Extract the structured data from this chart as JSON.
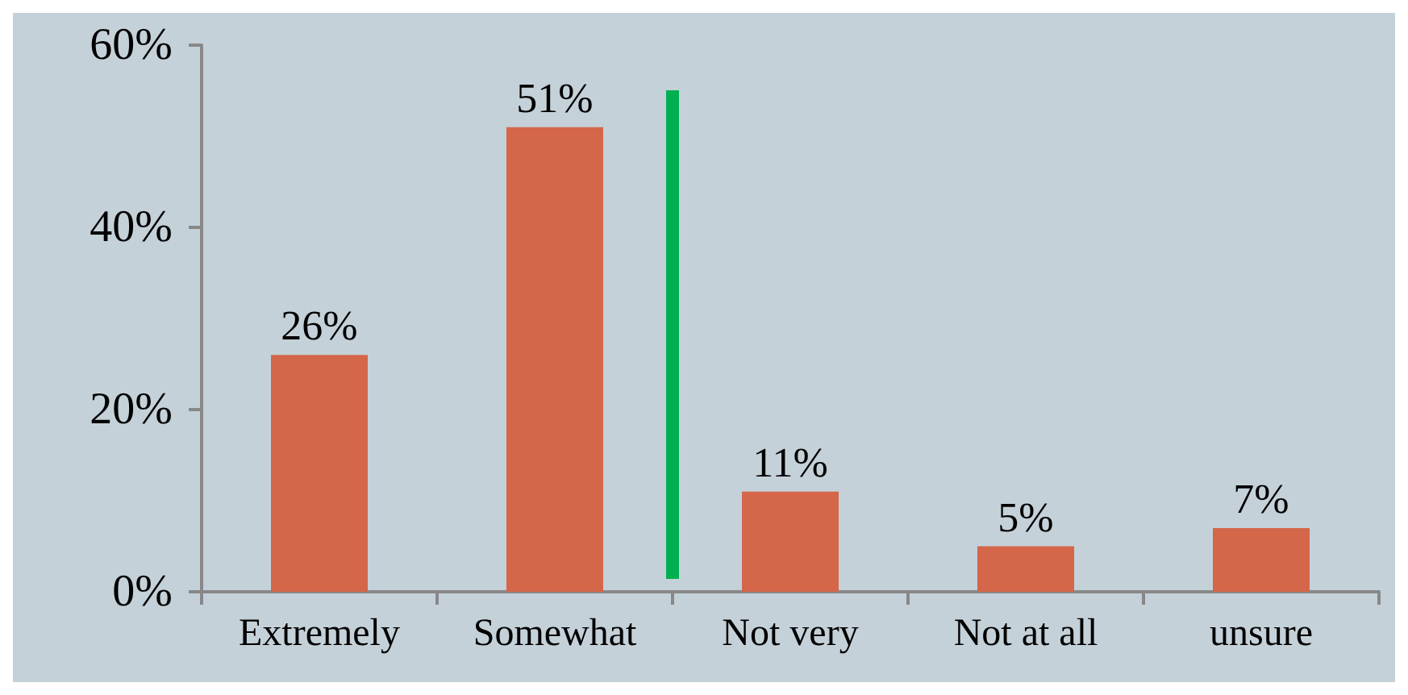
{
  "chart_data": {
    "type": "bar",
    "categories": [
      "Extremely",
      "Somewhat",
      "Not very",
      "Not at all",
      "unsure"
    ],
    "values": [
      26,
      51,
      11,
      5,
      7
    ],
    "color": "#d4664a",
    "ylim": [
      0,
      60
    ],
    "yticks": [
      {
        "value": 0,
        "label": "0%"
      },
      {
        "value": 20,
        "label": "20%"
      },
      {
        "value": 40,
        "label": "40%"
      },
      {
        "value": 60,
        "label": "60%"
      }
    ],
    "value_labels": [
      "26%",
      "51%",
      "11%",
      "5%",
      "7%"
    ],
    "grid": false
  }
}
